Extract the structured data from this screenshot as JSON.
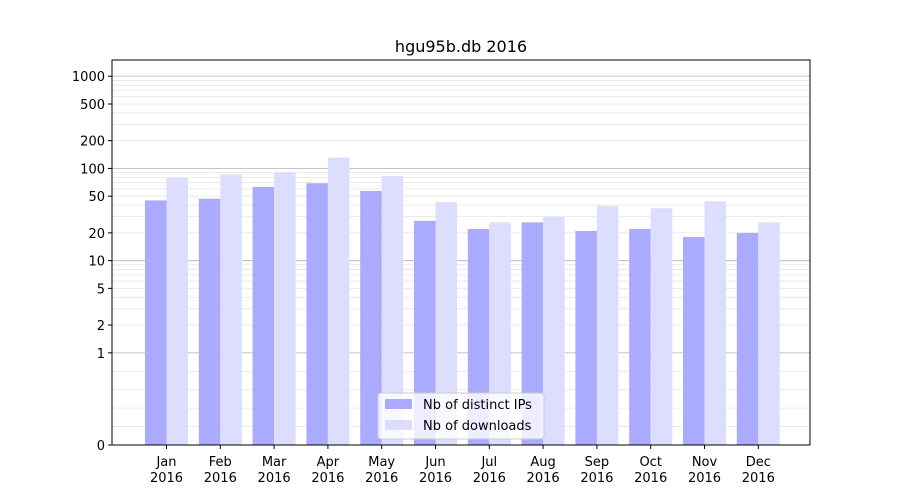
{
  "chart_data": {
    "type": "bar",
    "title": "hgu95b.db 2016",
    "xlabel": "",
    "ylabel": "",
    "yscale": "symlog",
    "ylim": [
      0,
      1500
    ],
    "grid": "horizontal",
    "legend_position": "bottom-center",
    "categories": [
      [
        "Jan",
        "2016"
      ],
      [
        "Feb",
        "2016"
      ],
      [
        "Mar",
        "2016"
      ],
      [
        "Apr",
        "2016"
      ],
      [
        "May",
        "2016"
      ],
      [
        "Jun",
        "2016"
      ],
      [
        "Jul",
        "2016"
      ],
      [
        "Aug",
        "2016"
      ],
      [
        "Sep",
        "2016"
      ],
      [
        "Oct",
        "2016"
      ],
      [
        "Nov",
        "2016"
      ],
      [
        "Dec",
        "2016"
      ]
    ],
    "y_ticks": [
      {
        "value": 0,
        "label": "0"
      },
      {
        "value": 1,
        "label": "1"
      },
      {
        "value": 2,
        "label": "2"
      },
      {
        "value": 5,
        "label": "5"
      },
      {
        "value": 10,
        "label": "10"
      },
      {
        "value": 20,
        "label": "20"
      },
      {
        "value": 50,
        "label": "50"
      },
      {
        "value": 100,
        "label": "100"
      },
      {
        "value": 200,
        "label": "200"
      },
      {
        "value": 500,
        "label": "500"
      },
      {
        "value": 1000,
        "label": "1000"
      }
    ],
    "series": [
      {
        "name": "Nb of distinct IPs",
        "color": "#aaaaff",
        "values": [
          45,
          47,
          63,
          69,
          57,
          27,
          22,
          26,
          21,
          22,
          18,
          20
        ]
      },
      {
        "name": "Nb of downloads",
        "color": "#ddddff",
        "values": [
          79,
          86,
          91,
          131,
          83,
          43,
          26,
          30,
          39,
          37,
          44,
          26
        ]
      }
    ]
  }
}
